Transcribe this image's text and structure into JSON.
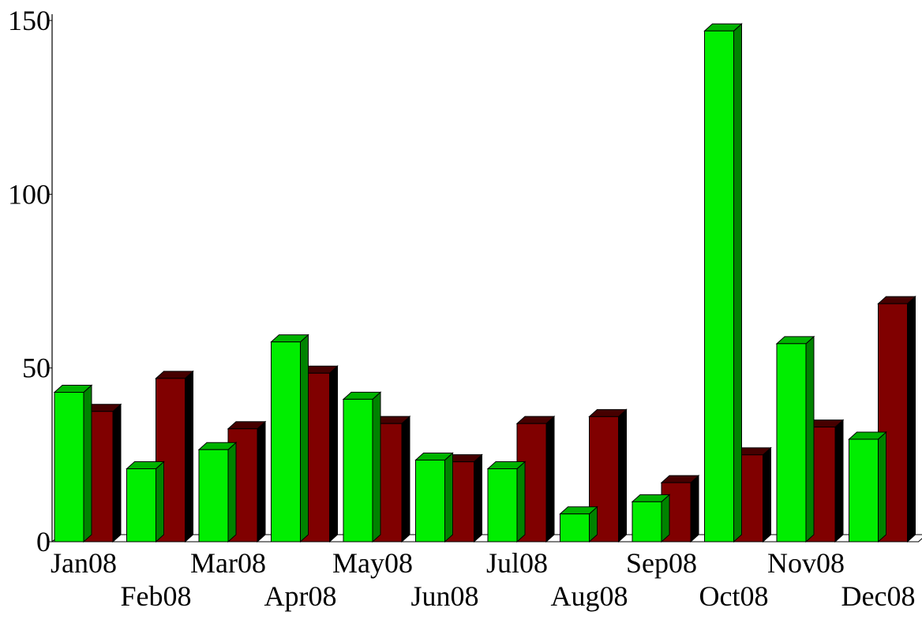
{
  "chart_data": {
    "type": "bar",
    "title": "",
    "xlabel": "",
    "ylabel": "",
    "ylim": [
      0,
      150
    ],
    "yticks": [
      0,
      50,
      100,
      150
    ],
    "ytick_labels": [
      "0",
      "50",
      "100",
      "150"
    ],
    "grid": false,
    "legend": "none",
    "style": "3d",
    "categories": [
      "Jan08",
      "Feb08",
      "Mar08",
      "Apr08",
      "May08",
      "Jun08",
      "Jul08",
      "Aug08",
      "Sep08",
      "Oct08",
      "Nov08",
      "Dec08"
    ],
    "series": [
      {
        "color": "#00ee00",
        "values": [
          43,
          21,
          26.5,
          57.5,
          41,
          23.5,
          21,
          8,
          11.5,
          147,
          57,
          29.5
        ]
      },
      {
        "color": "#800000",
        "values": [
          37.5,
          47,
          32.5,
          48.5,
          34,
          23,
          34,
          36,
          17,
          25,
          33,
          68.5
        ]
      }
    ]
  }
}
